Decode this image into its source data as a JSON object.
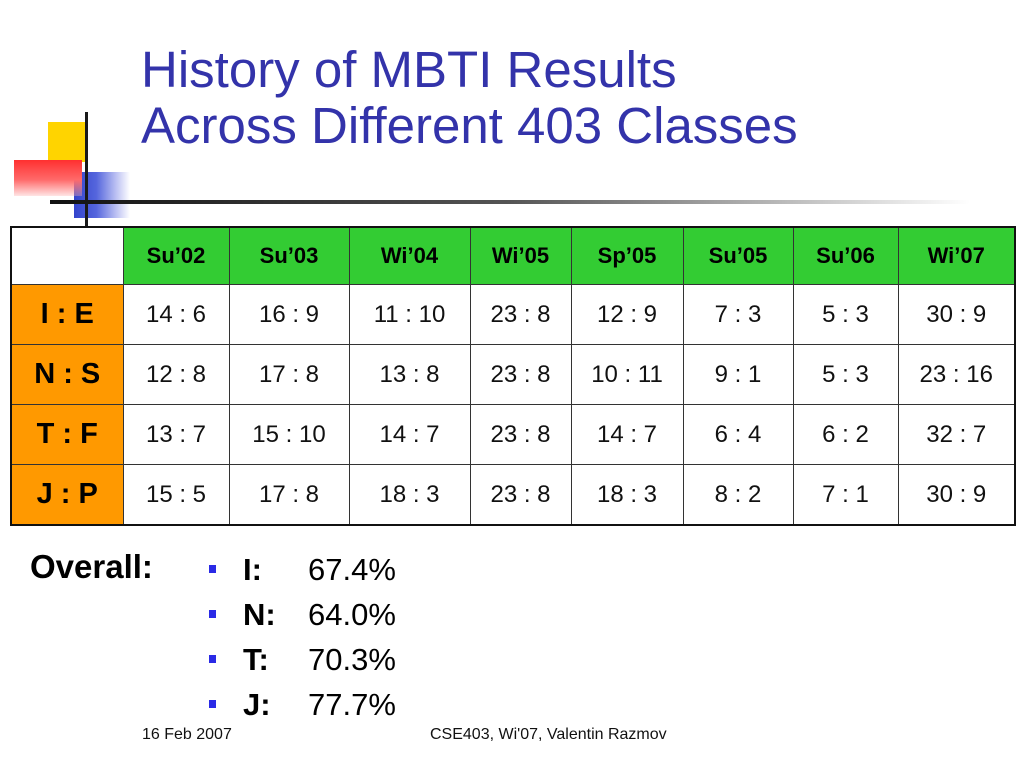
{
  "title": {
    "line1": "History of MBTI Results",
    "line2": "Across Different 403 Classes"
  },
  "table": {
    "corner": "",
    "columns": [
      "Su’02",
      "Su’03",
      "Wi’04",
      "Wi’05",
      "Sp’05",
      "Su’05",
      "Su’06",
      "Wi’07"
    ],
    "rows": [
      {
        "label": "I : E",
        "cells": [
          "14 : 6",
          "16 : 9",
          "11 : 10",
          "23 : 8",
          "12 : 9",
          "7 : 3",
          "5 : 3",
          "30 : 9"
        ]
      },
      {
        "label": "N : S",
        "cells": [
          "12 : 8",
          "17 : 8",
          "13 : 8",
          "23 : 8",
          "10 : 11",
          "9 : 1",
          "5 : 3",
          "23 : 16"
        ]
      },
      {
        "label": "T : F",
        "cells": [
          "13 : 7",
          "15 : 10",
          "14 : 7",
          "23 : 8",
          "14 : 7",
          "6 : 4",
          "6 : 2",
          "32 : 7"
        ]
      },
      {
        "label": "J : P",
        "cells": [
          "15 : 5",
          "17 : 8",
          "18 : 3",
          "23 : 8",
          "18 : 3",
          "8 : 2",
          "7 : 1",
          "30 : 9"
        ]
      }
    ]
  },
  "overall": {
    "label": "Overall:",
    "items": [
      {
        "letter": "I:",
        "value": "67.4%"
      },
      {
        "letter": "N:",
        "value": "64.0%"
      },
      {
        "letter": "T:",
        "value": "70.3%"
      },
      {
        "letter": "J:",
        "value": "77.7%"
      }
    ]
  },
  "footer": {
    "date": "16 Feb 2007",
    "center": "CSE403, Wi'07, Valentin Razmov"
  },
  "colors": {
    "title": "#3333aa",
    "column_header_bg": "#33cc33",
    "row_header_bg": "#ff9900",
    "bullet": "#2a2ae6"
  }
}
